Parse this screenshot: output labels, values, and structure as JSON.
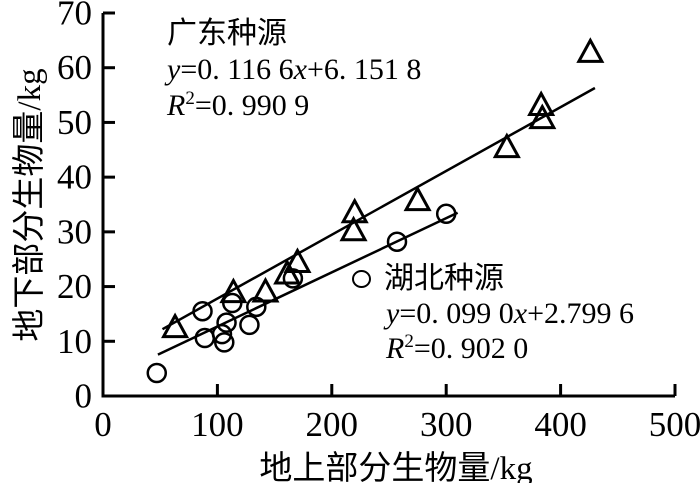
{
  "figure": {
    "background": "#ffffff",
    "ink_color": "#000000"
  },
  "chart_data": {
    "type": "scatter",
    "title": "",
    "xlabel": "地上部分生物量/kg",
    "ylabel": "地下部分生物量/kg",
    "xlim": [
      0,
      500
    ],
    "ylim": [
      0,
      70
    ],
    "x_ticks": [
      0,
      100,
      200,
      300,
      400,
      500
    ],
    "y_ticks": [
      0,
      10,
      20,
      30,
      40,
      50,
      60,
      70
    ],
    "grid": false,
    "legend_position": "inline-annotations",
    "series": [
      {
        "key": "guangdong",
        "name": "广东种源",
        "marker": "triangle",
        "points": [
          [
            63,
            12.5
          ],
          [
            114,
            18.9
          ],
          [
            142,
            19.0
          ],
          [
            161,
            22.3
          ],
          [
            170,
            24.4
          ],
          [
            219,
            30.2
          ],
          [
            220,
            33.5
          ],
          [
            275,
            35.7
          ],
          [
            353,
            45.4
          ],
          [
            384,
            50.7
          ],
          [
            383,
            53.1
          ],
          [
            426,
            62.8
          ]
        ],
        "fit": {
          "slope": 0.1166,
          "intercept": 6.1518,
          "x_range": [
            52,
            430
          ]
        }
      },
      {
        "key": "hubei",
        "name": "湖北种源",
        "marker": "circle",
        "points": [
          [
            47,
            4.2
          ],
          [
            87,
            15.5
          ],
          [
            89,
            10.6
          ],
          [
            104,
            11.3
          ],
          [
            106,
            9.8
          ],
          [
            108,
            13.4
          ],
          [
            113,
            17.0
          ],
          [
            128,
            13.0
          ],
          [
            134,
            16.3
          ],
          [
            166,
            21.5
          ],
          [
            257,
            28.2
          ],
          [
            300,
            33.3
          ]
        ],
        "fit": {
          "slope": 0.099,
          "intercept": 2.7996,
          "x_range": [
            48,
            310
          ]
        }
      }
    ]
  },
  "annotations": {
    "guangdong": {
      "title": "广东种源",
      "eq_var_y": "y",
      "eq_mid": "=0. 116 6",
      "eq_var_x": "x",
      "eq_tail": "+6. 151 8",
      "r_var": "R",
      "r_sup": "2",
      "r_tail": "=0. 990 9"
    },
    "hubei": {
      "title": "湖北种源",
      "eq_var_y": "y",
      "eq_mid": "=0. 099 0",
      "eq_var_x": "x",
      "eq_tail": "+2.799 6",
      "r_var": "R",
      "r_sup": "2",
      "r_tail": "=0. 902 0"
    }
  }
}
